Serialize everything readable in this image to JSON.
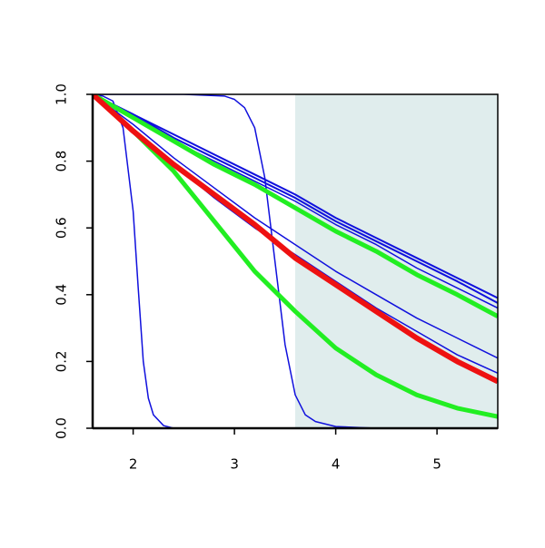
{
  "chart_data": {
    "type": "line",
    "xlim": [
      1.6,
      5.6
    ],
    "ylim": [
      0,
      1
    ],
    "xticks": [
      2,
      3,
      4,
      5
    ],
    "yticks": [
      {
        "value": 0,
        "label": "0.0"
      },
      {
        "value": 0.2,
        "label": "0.2"
      },
      {
        "value": 0.4,
        "label": "0.4"
      },
      {
        "value": 0.6,
        "label": "0.6"
      },
      {
        "value": 0.8,
        "label": "0.8"
      },
      {
        "value": 1,
        "label": "1.0"
      }
    ],
    "highlight": {
      "x": [
        3.6,
        5.6
      ],
      "color": "#e0eded"
    },
    "series": [
      {
        "color": "#1010dd",
        "width": 2,
        "x": [
          1.6,
          2.0,
          2.4,
          2.8,
          3.2,
          3.6,
          4.0,
          4.4,
          4.8,
          5.2,
          5.6
        ],
        "values": [
          1,
          0.94,
          0.88,
          0.82,
          0.76,
          0.7,
          0.63,
          0.57,
          0.51,
          0.45,
          0.39
        ]
      },
      {
        "color": "#1010dd",
        "width": 2,
        "x": [
          1.6,
          2.0,
          2.4,
          2.8,
          3.2,
          3.6,
          4.0,
          4.4,
          4.8,
          5.2,
          5.6
        ],
        "values": [
          1,
          0.94,
          0.87,
          0.81,
          0.75,
          0.69,
          0.62,
          0.56,
          0.5,
          0.44,
          0.375
        ]
      },
      {
        "color": "#1010dd",
        "width": 1.5,
        "x": [
          1.6,
          2.0,
          2.4,
          2.8,
          3.2,
          3.6,
          4.0,
          4.4,
          4.8,
          5.2,
          5.6
        ],
        "values": [
          1,
          0.93,
          0.86,
          0.8,
          0.74,
          0.68,
          0.61,
          0.55,
          0.48,
          0.42,
          0.36
        ]
      },
      {
        "color": "#1010dd",
        "width": 1.5,
        "x": [
          1.6,
          2.0,
          2.4,
          2.8,
          3.2,
          3.6,
          4.0,
          4.4,
          4.8,
          5.2,
          5.6
        ],
        "values": [
          1,
          0.91,
          0.81,
          0.72,
          0.63,
          0.55,
          0.47,
          0.4,
          0.33,
          0.27,
          0.21
        ]
      },
      {
        "color": "#1010dd",
        "width": 1.5,
        "x": [
          1.6,
          2.0,
          2.4,
          2.8,
          3.2,
          3.6,
          4.0,
          4.4,
          4.8,
          5.2,
          5.6
        ],
        "values": [
          1,
          0.89,
          0.79,
          0.69,
          0.6,
          0.52,
          0.44,
          0.36,
          0.29,
          0.22,
          0.165
        ]
      },
      {
        "color": "#1010dd",
        "width": 1.5,
        "x": [
          1.6,
          1.7,
          1.8,
          1.9,
          2.0,
          2.05,
          2.1,
          2.15,
          2.2,
          2.3,
          2.4,
          3.0,
          4.0,
          5.6
        ],
        "values": [
          1,
          0.995,
          0.98,
          0.9,
          0.65,
          0.42,
          0.2,
          0.09,
          0.04,
          0.008,
          0,
          0,
          0,
          0
        ]
      },
      {
        "color": "#1010dd",
        "width": 1.5,
        "x": [
          1.6,
          2.0,
          2.5,
          2.9,
          3.0,
          3.1,
          3.2,
          3.3,
          3.4,
          3.5,
          3.6,
          3.7,
          3.8,
          4.0,
          4.4,
          5.6
        ],
        "values": [
          1,
          1,
          1,
          0.995,
          0.985,
          0.96,
          0.9,
          0.75,
          0.5,
          0.25,
          0.1,
          0.04,
          0.02,
          0.005,
          0,
          0
        ]
      },
      {
        "color": "#22ee22",
        "width": 5,
        "x": [
          1.6,
          2.0,
          2.4,
          2.8,
          3.2,
          3.6,
          4.0,
          4.4,
          4.8,
          5.2,
          5.6
        ],
        "values": [
          1,
          0.93,
          0.86,
          0.79,
          0.73,
          0.66,
          0.59,
          0.53,
          0.46,
          0.4,
          0.335
        ]
      },
      {
        "color": "#22ee22",
        "width": 5,
        "x": [
          1.6,
          2.0,
          2.4,
          2.8,
          3.2,
          3.6,
          4.0,
          4.4,
          4.8,
          5.2,
          5.6
        ],
        "values": [
          1,
          0.89,
          0.77,
          0.62,
          0.47,
          0.35,
          0.24,
          0.16,
          0.1,
          0.06,
          0.035
        ]
      },
      {
        "color": "#ee1111",
        "width": 6,
        "x": [
          1.6,
          2.0,
          2.4,
          2.8,
          3.2,
          3.6,
          4.0,
          4.4,
          4.8,
          5.2,
          5.6
        ],
        "values": [
          1,
          0.89,
          0.79,
          0.7,
          0.61,
          0.51,
          0.43,
          0.35,
          0.27,
          0.2,
          0.14
        ]
      }
    ]
  }
}
